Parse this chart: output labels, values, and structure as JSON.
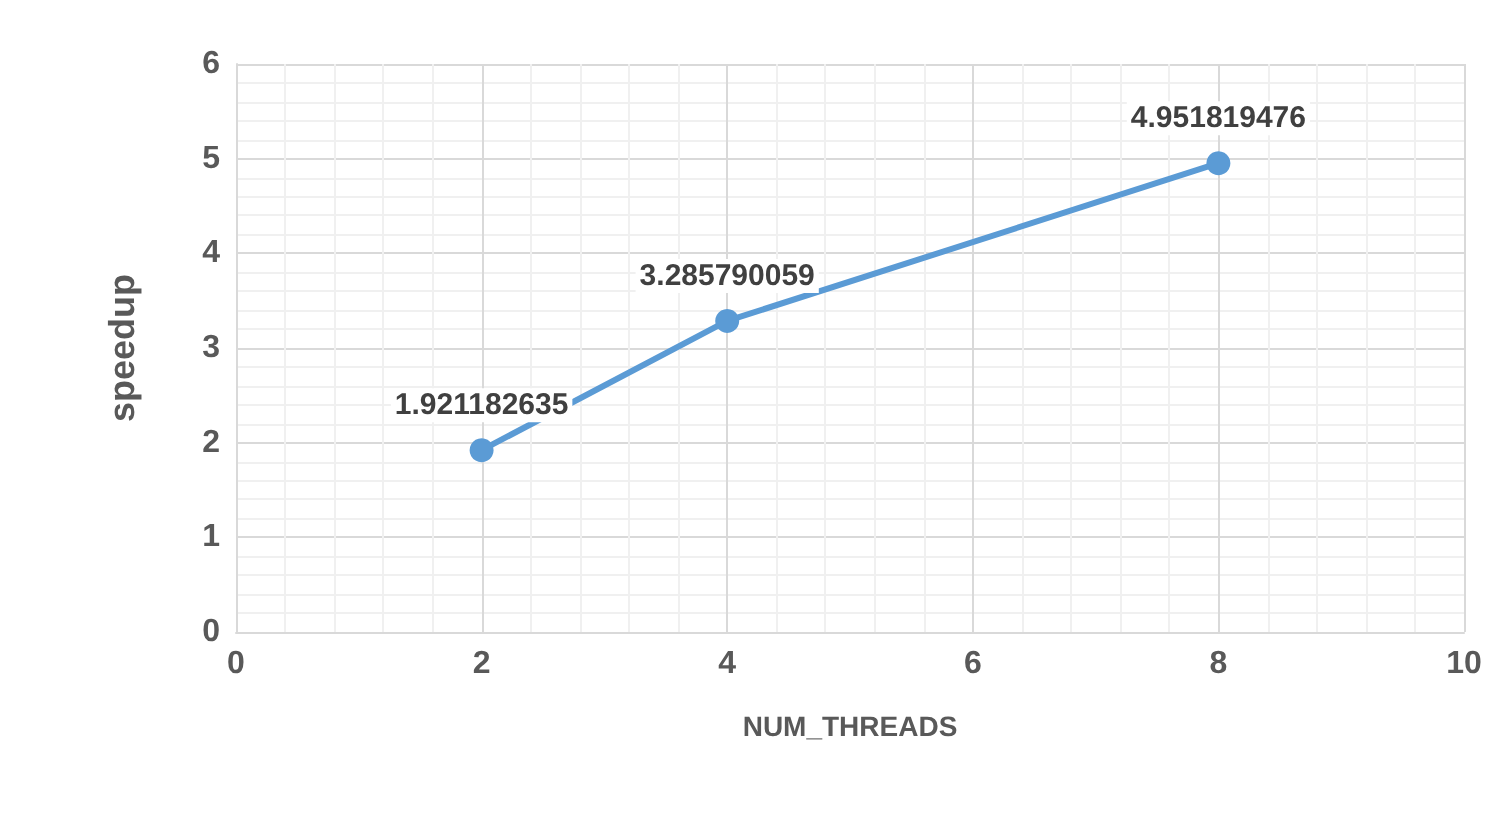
{
  "chart_data": {
    "type": "line",
    "xlabel": "NUM_THREADS",
    "ylabel": "speedup",
    "x": [
      2,
      4,
      8
    ],
    "series": [
      {
        "color": "#5b9bd5",
        "values": [
          1.921182635,
          3.285790059,
          4.951819476
        ]
      }
    ],
    "xlim": [
      0,
      10
    ],
    "xticks": [
      0,
      2,
      4,
      6,
      8,
      10
    ],
    "ylim": [
      0,
      6
    ],
    "yticks": [
      0,
      1,
      2,
      3,
      4,
      5,
      6
    ],
    "grid": true,
    "marker": "circle",
    "line_style": "solid",
    "data_labels": true
  }
}
